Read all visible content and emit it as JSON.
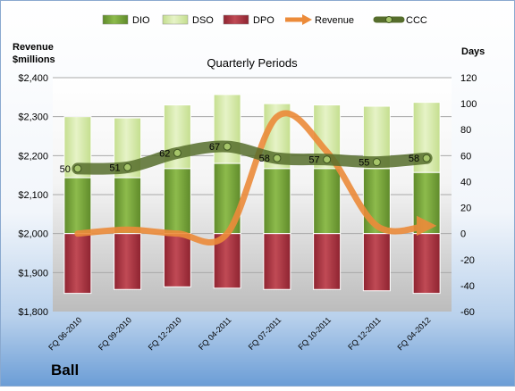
{
  "chart_data": {
    "type": "bar",
    "title": "Quarterly Periods",
    "company": "Ball",
    "left_axis_title_line1": "Revenue",
    "left_axis_title_line2": "$millions",
    "right_axis_title": "Days",
    "categories": [
      "FQ 06-2010",
      "FQ 09-2010",
      "FQ 12-2010",
      "FQ 04-2011",
      "FQ 07-2011",
      "FQ 10-2011",
      "FQ 12-2011",
      "FQ 04-2012"
    ],
    "left_axis": {
      "min": 1800,
      "max": 2400,
      "ticks": [
        "$1,800",
        "$1,900",
        "$2,000",
        "$2,100",
        "$2,200",
        "$2,300",
        "$2,400"
      ]
    },
    "right_axis": {
      "min": -60,
      "max": 120,
      "ticks": [
        "-60",
        "-40",
        "-20",
        "0",
        "20",
        "40",
        "60",
        "80",
        "100",
        "120"
      ]
    },
    "legend": [
      {
        "name": "DIO",
        "type": "bar"
      },
      {
        "name": "DSO",
        "type": "bar"
      },
      {
        "name": "DPO",
        "type": "bar"
      },
      {
        "name": "Revenue",
        "type": "line"
      },
      {
        "name": "CCC",
        "type": "line"
      }
    ],
    "series": [
      {
        "name": "DIO",
        "axis": "right",
        "values": [
          43,
          43,
          50,
          54,
          50,
          50,
          50,
          47
        ]
      },
      {
        "name": "DSO",
        "axis": "right",
        "values": [
          47,
          46,
          49,
          53,
          50,
          49,
          48,
          54
        ]
      },
      {
        "name": "DPO",
        "axis": "right",
        "values": [
          -46,
          -43,
          -41,
          -42,
          -43,
          -43,
          -44,
          -46
        ]
      },
      {
        "name": "Revenue",
        "axis": "left",
        "values": [
          2000,
          2010,
          2000,
          2000,
          2300,
          2210,
          2020,
          2020
        ]
      },
      {
        "name": "CCC",
        "axis": "right",
        "values": [
          50,
          51,
          62,
          67,
          58,
          57,
          55,
          58
        ]
      }
    ],
    "ccc_labels": [
      "50",
      "51",
      "62",
      "67",
      "58",
      "57",
      "55",
      "58"
    ],
    "grid": true,
    "legend_position": "top",
    "colors": {
      "DIO": "#77a13a",
      "DSO": "#d9ecae",
      "DPO": "#b03440",
      "Revenue": "#ec8b3a",
      "CCC": "#566d2c"
    }
  }
}
